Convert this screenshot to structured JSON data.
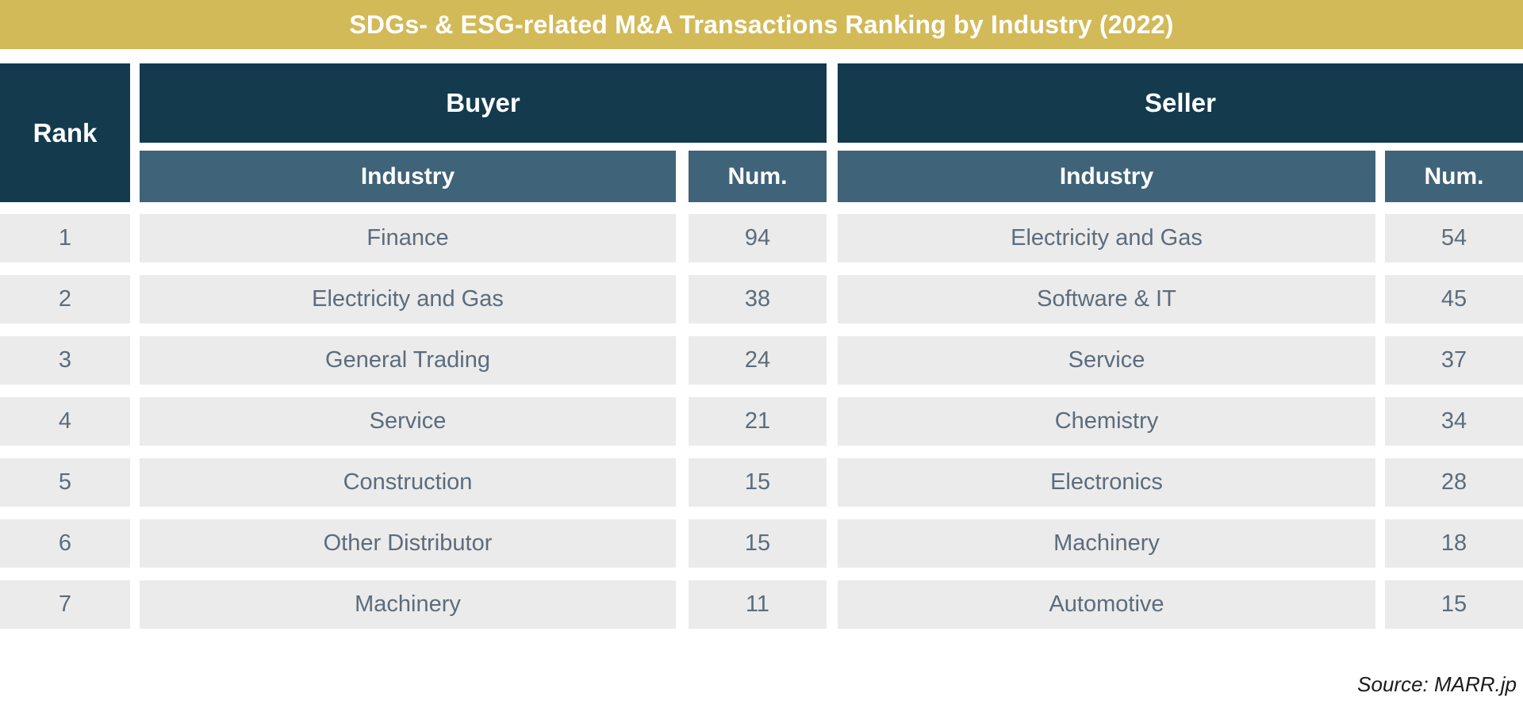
{
  "title": "SDGs- & ESG-related M&A Transactions Ranking by Industry (2022)",
  "header": {
    "rank": "Rank",
    "buyer": "Buyer",
    "seller": "Seller",
    "industry": "Industry",
    "num": "Num."
  },
  "chart_data": {
    "type": "table",
    "title": "SDGs- & ESG-related M&A Transactions Ranking by Industry (2022)",
    "columns": [
      "Rank",
      "Buyer Industry",
      "Buyer Num.",
      "Seller Industry",
      "Seller Num."
    ],
    "rows": [
      [
        "1",
        "Finance",
        "94",
        "Electricity and Gas",
        "54"
      ],
      [
        "2",
        "Electricity and Gas",
        "38",
        "Software & IT",
        "45"
      ],
      [
        "3",
        "General Trading",
        "24",
        "Service",
        "37"
      ],
      [
        "4",
        "Service",
        "21",
        "Chemistry",
        "34"
      ],
      [
        "5",
        "Construction",
        "15",
        "Electronics",
        "28"
      ],
      [
        "6",
        "Other Distributor",
        "15",
        "Machinery",
        "18"
      ],
      [
        "7",
        "Machinery",
        "11",
        "Automotive",
        "15"
      ]
    ],
    "source": "Source: MARR.jp"
  },
  "source": "Source: MARR.jp",
  "colors": {
    "banner_gold": "#d2ba58",
    "header_dark_teal": "#143a4d",
    "header_slate_blue": "#3f6379",
    "row_background": "#ebebeb",
    "cell_text": "#5b6c7d",
    "header_text": "#ffffff"
  }
}
